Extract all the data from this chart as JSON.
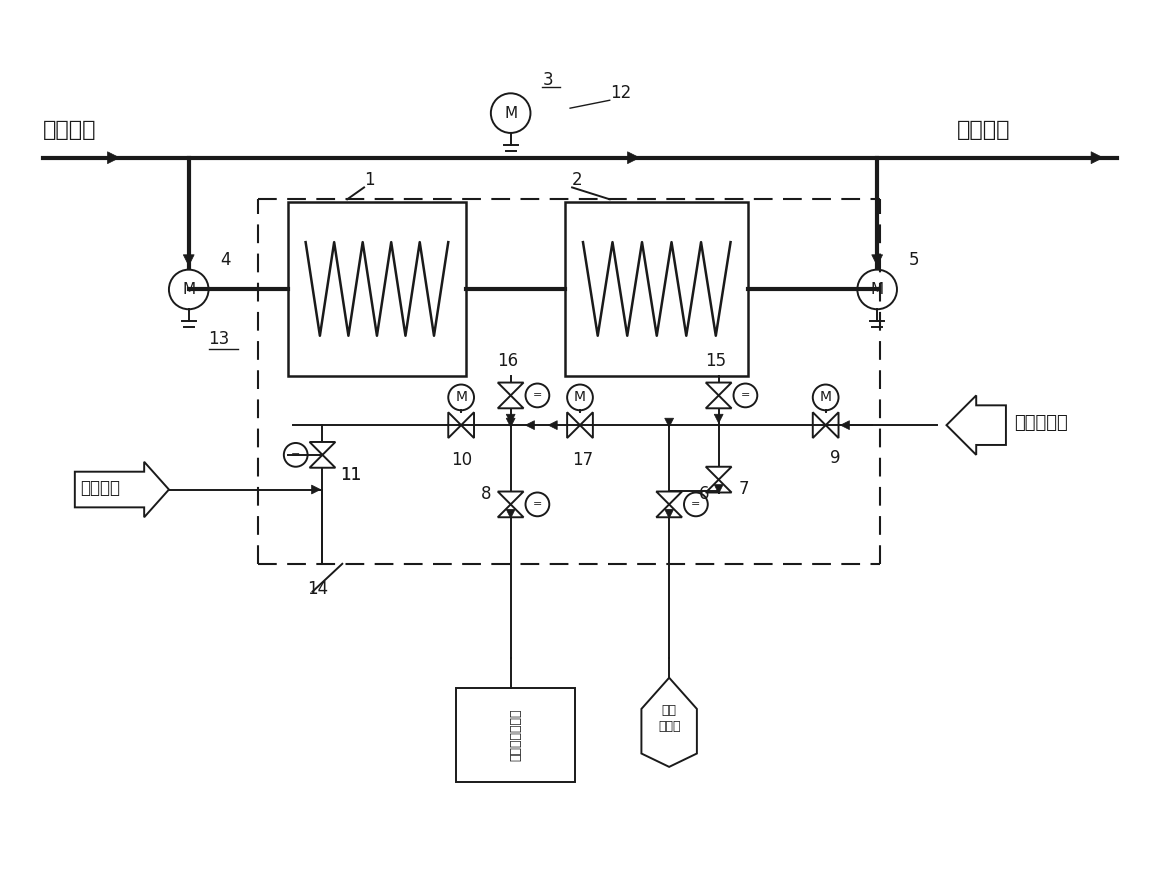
{
  "bg": "#ffffff",
  "lc": "#1a1a1a",
  "lw_bold": 3.0,
  "lw_med": 1.8,
  "lw_thin": 1.4,
  "lw_dash": 1.5,
  "inlet_label": "进口冷风",
  "outlet_label": "出口热风",
  "cooling_label": "冷却回水",
  "hotwater_label": "高温热水来",
  "condensate_line1": "疏水至回收装置",
  "steam_label": "加热蒸汽来"
}
